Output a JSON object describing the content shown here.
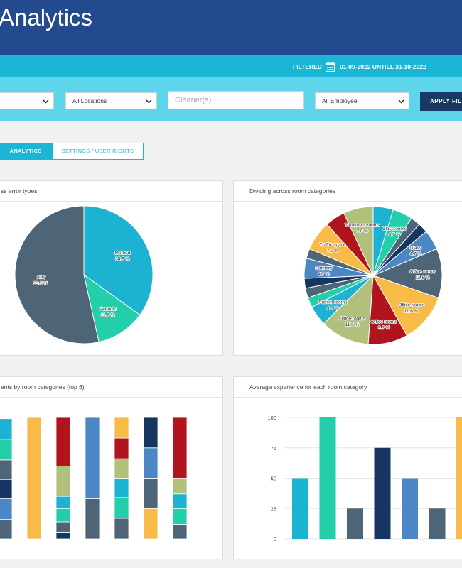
{
  "header": {
    "title": "Analytics"
  },
  "filterbar": {
    "label": "FILTERED",
    "range": "01-09-2022 UNTILL 31-10-2022"
  },
  "filters": {
    "locations": "All Locations",
    "cleaners": "Cleaner(s)",
    "employee": "All Employee",
    "apply": "APPLY FILT"
  },
  "tabs": [
    "ANALYTICS",
    "SETTINGS / USER RIGHTS"
  ],
  "chart_data": [
    {
      "type": "pie",
      "title": "ss error types",
      "categories": [
        "Method",
        "Periodic",
        "Dirty"
      ],
      "values": [
        34.9,
        11.6,
        53.5
      ],
      "value_labels": [
        "34.9 %",
        "11.6 %",
        "53.5 %"
      ],
      "colors": [
        "#1cb3d2",
        "#22cfa8",
        "#4e6577"
      ]
    },
    {
      "type": "pie",
      "title": "Dividing across room categories",
      "categories": [
        null,
        "Classrooms",
        null,
        null,
        "Glass",
        "Office rooms",
        "Office rooms",
        "Office rooms",
        "Office rooms",
        "Patient rooms",
        null,
        null,
        null,
        "Sanitary",
        null,
        "Traffic space",
        null,
        "Treatment rooms"
      ],
      "values": [
        4.7,
        4.7,
        2.3,
        2.3,
        4.7,
        11.6,
        11.6,
        9.3,
        11.6,
        4.7,
        2.3,
        2.3,
        2.3,
        4.7,
        2.3,
        7.0,
        4.7,
        7.0
      ],
      "value_labels": [
        null,
        "4.7 %",
        null,
        null,
        "4.7 %",
        "11.6 %",
        "11.6 %",
        "9.3 %",
        "11.6 %",
        "4.7 %",
        null,
        null,
        null,
        "4.7 %",
        null,
        "7.0 %",
        null,
        "7.0 %"
      ],
      "colors": [
        "#1cb3d2",
        "#22cfa8",
        "#4e6577",
        "#163560",
        "#4a87c4",
        "#4e6577",
        "#f9bb47",
        "#b0141c",
        "#b1c17c",
        "#1cb3d2",
        "#22cfa8",
        "#4e6577",
        "#163560",
        "#4a87c4",
        "#4e6577",
        "#f9bb47",
        "#b0141c",
        "#b1c17c"
      ]
    },
    {
      "type": "stacked_bar",
      "title": "ents by room categories (top 6)",
      "ylim": [
        0,
        100
      ],
      "stacks": [
        [
          {
            "value": 16,
            "color": "#4e6577"
          },
          {
            "value": 17,
            "color": "#4a87c4"
          },
          {
            "value": 16,
            "color": "#163560"
          },
          {
            "value": 16,
            "color": "#4e6577"
          },
          {
            "value": 17,
            "color": "#22cfa8"
          },
          {
            "value": 17,
            "color": "#1cb3d2"
          }
        ],
        [
          {
            "value": 100,
            "color": "#f9bb47"
          }
        ],
        [
          {
            "value": 5,
            "color": "#163560"
          },
          {
            "value": 9,
            "color": "#4e6577"
          },
          {
            "value": 11,
            "color": "#22cfa8"
          },
          {
            "value": 10,
            "color": "#1cb3d2"
          },
          {
            "value": 25,
            "color": "#b1c17c"
          },
          {
            "value": 40,
            "color": "#b0141c"
          }
        ],
        [
          {
            "value": 33,
            "color": "#4e6577"
          },
          {
            "value": 67,
            "color": "#4a87c4"
          }
        ],
        [
          {
            "value": 17,
            "color": "#4e6577"
          },
          {
            "value": 17,
            "color": "#22cfa8"
          },
          {
            "value": 16,
            "color": "#1cb3d2"
          },
          {
            "value": 16,
            "color": "#b1c17c"
          },
          {
            "value": 17,
            "color": "#b0141c"
          },
          {
            "value": 17,
            "color": "#f9bb47"
          }
        ],
        [
          {
            "value": 25,
            "color": "#f9bb47"
          },
          {
            "value": 25,
            "color": "#4e6577"
          },
          {
            "value": 25,
            "color": "#4a87c4"
          },
          {
            "value": 25,
            "color": "#163560"
          }
        ],
        [
          {
            "value": 12,
            "color": "#4e6577"
          },
          {
            "value": 13,
            "color": "#22cfa8"
          },
          {
            "value": 12,
            "color": "#1cb3d2"
          },
          {
            "value": 13,
            "color": "#b1c17c"
          },
          {
            "value": 50,
            "color": "#b0141c"
          }
        ]
      ]
    },
    {
      "type": "bar",
      "title": "Average experience for each room category",
      "values": [
        50,
        100,
        25,
        75,
        50,
        25,
        100
      ],
      "colors": [
        "#1cb3d2",
        "#22cfa8",
        "#4e6577",
        "#163560",
        "#4a87c4",
        "#4e6577",
        "#f9bb47"
      ],
      "ylim": [
        0,
        100
      ],
      "yticks": [
        0,
        25,
        50,
        75,
        100
      ],
      "grid": true
    }
  ]
}
